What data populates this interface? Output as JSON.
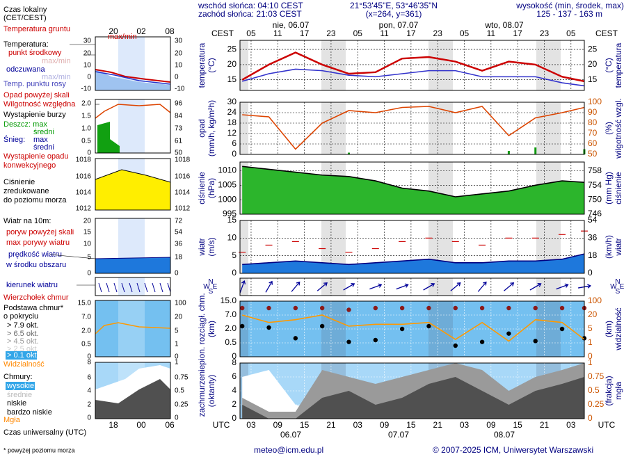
{
  "header": {
    "sunrise": "wschód słońca: 04:10 CEST",
    "sunset": "zachód słońca: 21:03 CEST",
    "coords": "21°53'45\"E, 53°46'35\"N",
    "grid_point": "(x=264, y=361)",
    "altitude_label": "wysokość (min, środek, max)",
    "altitude": "125 - 137 - 163 m"
  },
  "time_axis": {
    "top_unit": "CEST",
    "bottom_unit": "UTC"
  },
  "footer": {
    "note": "* powyżej poziomu morza",
    "email": "meteo@icm.edu.pl",
    "copyright": "© 2007-2025 ICM, Uniwersytet Warszawski"
  },
  "legend": {
    "local_time": "Czas lokalny",
    "local_time_zone": "(CET/CEST)",
    "ground_temp": "Temperatura gruntu",
    "ground_temp_range": "max/min",
    "temperature": "Temperatura:",
    "mid_range": "max/min",
    "apparent": "odczuwana",
    "apparent_range": "max/min",
    "precip_over": "Opad powyżej skali",
    "storm": "Wystąpienie burzy",
    "rain_mean": "średni",
    "snow": "Śnieg:",
    "snow_max": "max",
    "snow_mean": "średni",
    "convective": "Wystąpienie opadu",
    "convective2": "konwekcyjnego",
    "pressure2": "zredukowane",
    "pressure3": "do poziomu morza",
    "wind": "Wiatr na 10m:",
    "gust_over": "poryw powyżej skali",
    "wind_speed2": "w środku obszaru",
    "cloud_base2": "o pokryciu",
    "okt": [
      "> 7.9 okt.",
      "> 6.5 okt.",
      "> 4.5 okt.",
      "> 2.5 okt.",
      "> 0.1 okt."
    ],
    "clouds": "Chmury:",
    "very_low": "bardzo niskie",
    "fog": "Mgła",
    "utc_time": "Czas uniwersalny (UTC)",
    "mini_top": [
      "20",
      "02",
      "08"
    ],
    "mini_bottom": [
      "18",
      "00",
      "06"
    ],
    "mini_ticks": [
      {
        "left": [
          "30",
          "20",
          "10",
          "0",
          "-10"
        ],
        "right": [
          "30",
          "20",
          "10",
          "0",
          "-10"
        ]
      },
      {
        "left": [
          "2.0",
          "1.5",
          "1.0",
          "0.5",
          "0"
        ],
        "right": [
          "96",
          "84",
          "73",
          "61",
          "50"
        ]
      },
      {
        "left": [
          "1018",
          "1016",
          "1014",
          "1012"
        ],
        "right": [
          "1018",
          "1016",
          "1014",
          "1012"
        ]
      },
      {
        "left": [
          "20",
          "15",
          "10",
          "5",
          "0"
        ],
        "right": [
          "72",
          "54",
          "36",
          "18",
          "0"
        ]
      },
      {
        "left": [
          "15.0",
          "7.0",
          "2.0",
          "0.5",
          "0"
        ],
        "right": [
          "100",
          "20",
          "5",
          "1",
          "0"
        ]
      },
      {
        "left": [
          "8",
          "6",
          "4",
          "2",
          "0"
        ],
        "right": [
          "1",
          "0.75",
          "0.5",
          "0.25",
          "0"
        ]
      }
    ]
  },
  "chart_data": [
    {
      "type": "line",
      "ylabel": [
        "temperatura",
        "(°C)"
      ],
      "y2label": [
        "(°C)",
        "temperatura"
      ],
      "date_labels": [
        "nie, 06.07",
        "pon, 07.07",
        "wto, 08.07"
      ],
      "x": [
        3,
        9,
        15,
        21,
        27,
        33,
        39,
        45,
        51,
        57,
        63,
        69,
        75,
        80
      ],
      "xlim": [
        2.5,
        80
      ],
      "xticks": [
        {
          "value": 5,
          "label": "05"
        },
        {
          "value": 11,
          "label": "11"
        },
        {
          "value": 17,
          "label": "17"
        },
        {
          "value": 23,
          "label": "23"
        },
        {
          "value": 29,
          "label": "05"
        },
        {
          "value": 35,
          "label": "11"
        },
        {
          "value": 41,
          "label": "17"
        },
        {
          "value": 47,
          "label": "23"
        },
        {
          "value": 53,
          "label": "05"
        },
        {
          "value": 59,
          "label": "11"
        },
        {
          "value": 65,
          "label": "17"
        },
        {
          "value": 71,
          "label": "23"
        },
        {
          "value": 77,
          "label": "05"
        }
      ],
      "ylim": [
        11.5,
        28
      ],
      "yticks": [
        15,
        20,
        25
      ],
      "grid": true,
      "series": [
        {
          "name": "punkt środkowy",
          "color": "#cc0000",
          "values": [
            15,
            20,
            24,
            20,
            17,
            17.5,
            22,
            22.5,
            21,
            18,
            21,
            20,
            16,
            14.5
          ]
        },
        {
          "name": "Temp. punktu rosy",
          "color": "#3333cc",
          "values": [
            14.5,
            17,
            18.5,
            18,
            16.5,
            16,
            17,
            18,
            18,
            16,
            16,
            16,
            14,
            13
          ]
        }
      ]
    },
    {
      "type": "line",
      "ylabel": [
        "opad",
        "(mm/h, kg/m²h)"
      ],
      "y2label": [
        "(%)",
        "wilgotność wzgl."
      ],
      "x": [
        3,
        9,
        15,
        21,
        27,
        33,
        39,
        45,
        51,
        57,
        63,
        69,
        75,
        80
      ],
      "xlim": [
        2.5,
        80
      ],
      "ylim": [
        0,
        30
      ],
      "yticks": [
        0,
        6,
        12,
        18,
        24,
        30
      ],
      "y2lim": [
        50,
        100
      ],
      "y2ticks": [
        50,
        60,
        70,
        80,
        90,
        100
      ],
      "grid": true,
      "series": [
        {
          "name": "Wilgotność względna",
          "color": "#dd4400",
          "axis": "y2",
          "values": [
            88,
            86,
            55,
            80,
            92,
            90,
            95,
            96,
            90,
            96,
            68,
            85,
            90,
            95
          ]
        },
        {
          "name": "Deszcz: max",
          "type": "bar",
          "color": "#119911",
          "values": [
            0,
            0,
            0,
            0,
            1,
            0,
            0,
            0,
            0,
            0,
            2,
            4,
            0,
            3
          ]
        }
      ]
    },
    {
      "type": "area",
      "ylabel": [
        "ciśnienie",
        "(hPa)"
      ],
      "y2label": [
        "(mm Hg)",
        "ciśnienie"
      ],
      "x": [
        3,
        9,
        15,
        21,
        27,
        33,
        39,
        45,
        51,
        57,
        63,
        69,
        75,
        80
      ],
      "xlim": [
        2.5,
        80
      ],
      "ylim": [
        995,
        1013
      ],
      "yticks": [
        995,
        1000,
        1005,
        1010
      ],
      "y2lim": [
        746,
        760.5
      ],
      "y2ticks": [
        746,
        750,
        754,
        758
      ],
      "grid": true,
      "series": [
        {
          "name": "Ciśnienie",
          "color": "#000000",
          "fill": "#2cb52c",
          "values": [
            1011.5,
            1010.5,
            1009.5,
            1008.5,
            1008,
            1006.5,
            1004,
            1003,
            1001,
            1002,
            1003,
            1005,
            1006.5,
            1006
          ]
        }
      ]
    },
    {
      "type": "area",
      "ylabel": [
        "wiatr",
        "(m/s)"
      ],
      "y2label": [
        "(km/h)",
        "wiatr"
      ],
      "x": [
        3,
        9,
        15,
        21,
        27,
        33,
        39,
        45,
        51,
        57,
        63,
        69,
        75,
        80
      ],
      "xlim": [
        2.5,
        80
      ],
      "ylim": [
        0,
        15
      ],
      "yticks": [
        0,
        5,
        10,
        15
      ],
      "y2lim": [
        0,
        54
      ],
      "y2ticks": [
        0,
        18,
        36,
        54
      ],
      "grid": true,
      "series": [
        {
          "name": "prędkość wiatru",
          "color": "#000080",
          "fill": "#1e78dc",
          "values": [
            2.5,
            3,
            3.5,
            3,
            2.5,
            3,
            3.5,
            4,
            3,
            3,
            3.5,
            3.5,
            4,
            5.5
          ]
        },
        {
          "name": "max porywy wiatru",
          "type": "dash",
          "color": "#cc0000",
          "values": [
            6,
            8,
            9,
            7,
            6,
            7,
            9,
            10,
            9,
            8,
            10,
            10,
            11,
            12
          ]
        }
      ]
    },
    {
      "type": "arrow",
      "compass": [
        "N",
        "W",
        "E",
        "S"
      ],
      "x": [
        3,
        9,
        15,
        21,
        27,
        33,
        39,
        45,
        51,
        57,
        63,
        69,
        75,
        80
      ],
      "xlim": [
        2.5,
        80
      ],
      "series": [
        {
          "name": "kierunek wiatru",
          "color": "#000099",
          "values": [
            200,
            210,
            220,
            230,
            240,
            250,
            250,
            240,
            230,
            220,
            230,
            240,
            250,
            260
          ]
        }
      ]
    },
    {
      "type": "scatter",
      "ylabel": [
        "pion. rozciągł. chm.",
        "(km)"
      ],
      "y2label": [
        "(km)",
        "widzialność"
      ],
      "yscale": "piecewise",
      "x": [
        3,
        9,
        15,
        21,
        27,
        33,
        39,
        45,
        51,
        57,
        63,
        69,
        75,
        80
      ],
      "xlim": [
        2.5,
        80
      ],
      "yticks": [
        0,
        0.5,
        {
          "value": 2,
          "label": "2.0"
        },
        {
          "value": 7,
          "label": "7.0"
        },
        {
          "value": 15,
          "label": "15.0"
        }
      ],
      "y2ticks": [
        0,
        1,
        5,
        20,
        100
      ],
      "grid": true,
      "series": [
        {
          "name": "Wierzchołek chmur",
          "color": "#8b1a1a",
          "values": [
            11,
            11,
            11,
            11,
            10,
            11,
            11,
            11,
            11,
            11,
            11,
            11,
            11,
            11
          ]
        },
        {
          "name": "Podstawa chmur*",
          "color": "#000000",
          "values": [
            3,
            2.5,
            1,
            3,
            0.6,
            0.8,
            2,
            3,
            0.4,
            0.6,
            1.5,
            0.7,
            2,
            1
          ]
        },
        {
          "name": "Widzialność",
          "type": "line",
          "axis": "y2",
          "color": "#ff9900",
          "values": [
            20,
            12,
            15,
            20,
            8,
            10,
            10,
            12,
            2,
            12,
            1.5,
            15,
            12,
            2
          ]
        }
      ]
    },
    {
      "type": "area",
      "ylabel": [
        "zachmurzenie",
        "(oktanty)"
      ],
      "y2label": [
        "(frakcja)",
        "mgła"
      ],
      "date_labels": [
        "06.07",
        "07.07",
        "08.07"
      ],
      "x": [
        3,
        9,
        15,
        21,
        27,
        33,
        39,
        45,
        51,
        57,
        63,
        69,
        75,
        80
      ],
      "xlim": [
        2.5,
        80
      ],
      "xticks": [
        {
          "value": 5,
          "label": "03"
        },
        {
          "value": 11,
          "label": "09"
        },
        {
          "value": 17,
          "label": "15"
        },
        {
          "value": 23,
          "label": "21"
        },
        {
          "value": 29,
          "label": "03"
        },
        {
          "value": 35,
          "label": "09"
        },
        {
          "value": 41,
          "label": "15"
        },
        {
          "value": 47,
          "label": "21"
        },
        {
          "value": 53,
          "label": "03"
        },
        {
          "value": 59,
          "label": "09"
        },
        {
          "value": 65,
          "label": "15"
        },
        {
          "value": 71,
          "label": "21"
        },
        {
          "value": 77,
          "label": "03"
        }
      ],
      "ylim": [
        0,
        8
      ],
      "yticks": [
        0,
        2,
        4,
        6,
        8
      ],
      "y2lim": [
        0,
        1
      ],
      "y2ticks": [
        0,
        0.25,
        0.5,
        0.75,
        1
      ],
      "grid": true,
      "series": [
        {
          "name": "wysokie",
          "color": "#ffffff",
          "values": [
            6,
            7,
            2,
            1,
            5,
            3,
            2,
            3,
            6,
            4,
            2,
            5,
            6,
            3
          ]
        },
        {
          "name": "średnie",
          "color": "#9a9a9a",
          "values": [
            3,
            1,
            1,
            7,
            6,
            5,
            6,
            7,
            8,
            7,
            4,
            6,
            7,
            8
          ]
        },
        {
          "name": "niskie",
          "color": "#505050",
          "values": [
            2,
            0,
            0,
            3,
            4,
            2,
            3,
            5,
            6,
            4,
            2,
            4,
            5,
            6
          ]
        }
      ]
    }
  ]
}
